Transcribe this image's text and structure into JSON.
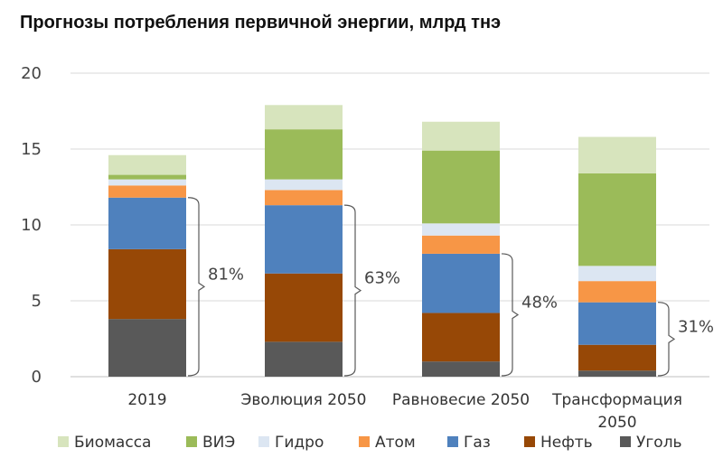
{
  "chart_data": {
    "type": "bar",
    "stacked": true,
    "title": "Прогнозы потребления первичной энергии, млрд тнэ",
    "xlabel": "",
    "ylabel": "",
    "ylim": [
      0,
      20
    ],
    "yticks": [
      0,
      5,
      10,
      15,
      20
    ],
    "grid": true,
    "legend_position": "bottom",
    "categories": [
      [
        "2019"
      ],
      [
        "Эволюция 2050"
      ],
      [
        "Равновесие 2050"
      ],
      [
        "Трансформация",
        "2050"
      ]
    ],
    "series": [
      {
        "name": "Уголь",
        "color": "#595959",
        "values": [
          3.8,
          2.3,
          1.0,
          0.4
        ]
      },
      {
        "name": "Нефть",
        "color": "#974806",
        "values": [
          4.6,
          4.5,
          3.2,
          1.7
        ]
      },
      {
        "name": "Газ",
        "color": "#4f81bd",
        "values": [
          3.4,
          4.5,
          3.9,
          2.8
        ]
      },
      {
        "name": "Атом",
        "color": "#f79646",
        "values": [
          0.8,
          1.0,
          1.2,
          1.4
        ]
      },
      {
        "name": "Гидро",
        "color": "#dce6f2",
        "values": [
          0.4,
          0.7,
          0.8,
          1.0
        ]
      },
      {
        "name": "ВИЭ",
        "color": "#9bbb59",
        "values": [
          0.3,
          3.3,
          4.8,
          6.1
        ]
      },
      {
        "name": "Биомасса",
        "color": "#d7e4bd",
        "values": [
          1.3,
          1.6,
          1.9,
          2.4
        ]
      }
    ],
    "legend_order": [
      "Биомасса",
      "ВИЭ",
      "Гидро",
      "Атом",
      "Газ",
      "Нефть",
      "Уголь"
    ],
    "fossil_share_labels": [
      "81%",
      "63%",
      "48%",
      "31%"
    ],
    "fossil_share_note_series": [
      "Уголь",
      "Нефть",
      "Газ"
    ]
  }
}
